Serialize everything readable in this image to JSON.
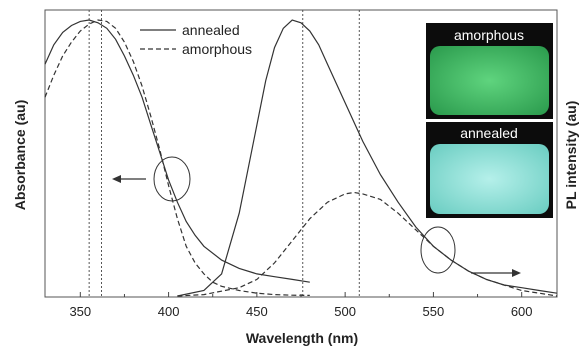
{
  "chart_data": {
    "type": "line",
    "xlabel": "Wavelength (nm)",
    "ylabel_left": "Absorbance (au)",
    "ylabel_right": "PL intensity (au)",
    "xlim": [
      330,
      620
    ],
    "ylim": [
      0,
      1
    ],
    "x_ticks": [
      350,
      400,
      450,
      500,
      550,
      600
    ],
    "legend": {
      "position": "top-center",
      "entries": [
        "annealed",
        "amorphous"
      ]
    },
    "series": [
      {
        "name": "annealed",
        "kind": "absorbance",
        "style": "solid",
        "x": [
          330,
          335,
          340,
          345,
          350,
          355,
          360,
          365,
          370,
          375,
          380,
          385,
          390,
          395,
          400,
          405,
          410,
          415,
          420,
          430,
          440,
          450,
          460,
          470,
          480
        ],
        "y": [
          0.84,
          0.91,
          0.955,
          0.98,
          0.995,
          1.0,
          0.99,
          0.97,
          0.93,
          0.87,
          0.8,
          0.72,
          0.62,
          0.52,
          0.42,
          0.34,
          0.27,
          0.22,
          0.18,
          0.13,
          0.1,
          0.08,
          0.07,
          0.06,
          0.05
        ]
      },
      {
        "name": "amorphous",
        "kind": "absorbance",
        "style": "dashed",
        "x": [
          330,
          335,
          340,
          345,
          350,
          355,
          360,
          365,
          370,
          375,
          380,
          385,
          390,
          395,
          400,
          405,
          410,
          415,
          420,
          425,
          430,
          440,
          450,
          460,
          470,
          480
        ],
        "y": [
          0.72,
          0.8,
          0.87,
          0.92,
          0.96,
          0.985,
          1.0,
          0.995,
          0.97,
          0.92,
          0.85,
          0.76,
          0.65,
          0.53,
          0.4,
          0.28,
          0.18,
          0.12,
          0.08,
          0.05,
          0.035,
          0.02,
          0.01,
          0.005,
          0.003,
          0.002
        ]
      },
      {
        "name": "annealed",
        "kind": "PL",
        "style": "solid",
        "x": [
          405,
          420,
          430,
          440,
          450,
          455,
          460,
          465,
          470,
          475,
          480,
          485,
          490,
          500,
          510,
          520,
          530,
          540,
          550,
          560,
          570,
          580,
          590,
          600,
          610,
          620
        ],
        "y": [
          0.0,
          0.02,
          0.08,
          0.3,
          0.62,
          0.78,
          0.9,
          0.97,
          1.0,
          0.99,
          0.96,
          0.91,
          0.84,
          0.7,
          0.56,
          0.44,
          0.34,
          0.25,
          0.18,
          0.13,
          0.09,
          0.06,
          0.04,
          0.03,
          0.02,
          0.01
        ]
      },
      {
        "name": "amorphous",
        "kind": "PL",
        "style": "dashed",
        "x": [
          405,
          420,
          440,
          450,
          460,
          470,
          480,
          490,
          500,
          505,
          510,
          520,
          530,
          540,
          550,
          560,
          570,
          580,
          590,
          600,
          610,
          620
        ],
        "y": [
          0.0,
          0.005,
          0.03,
          0.06,
          0.12,
          0.2,
          0.28,
          0.34,
          0.37,
          0.375,
          0.37,
          0.35,
          0.3,
          0.24,
          0.18,
          0.13,
          0.09,
          0.06,
          0.04,
          0.02,
          0.01,
          0.0
        ]
      }
    ],
    "reference_lines_x": [
      355,
      362,
      476,
      508
    ],
    "annotations": [
      {
        "type": "ellipse",
        "x": 405,
        "y": 0.36,
        "points_to": "left axis"
      },
      {
        "type": "ellipse",
        "x": 550,
        "y": 0.17,
        "points_to": "right axis"
      }
    ],
    "colors": {
      "line": "#333333",
      "grid": "#444444",
      "background": "#ffffff"
    }
  },
  "photos": [
    {
      "label": "amorphous",
      "glow_color": "#44c46a",
      "background": "#0c0c0c"
    },
    {
      "label": "annealed",
      "glow_color": "#8ee0d8",
      "background": "#0c0c0c"
    }
  ]
}
